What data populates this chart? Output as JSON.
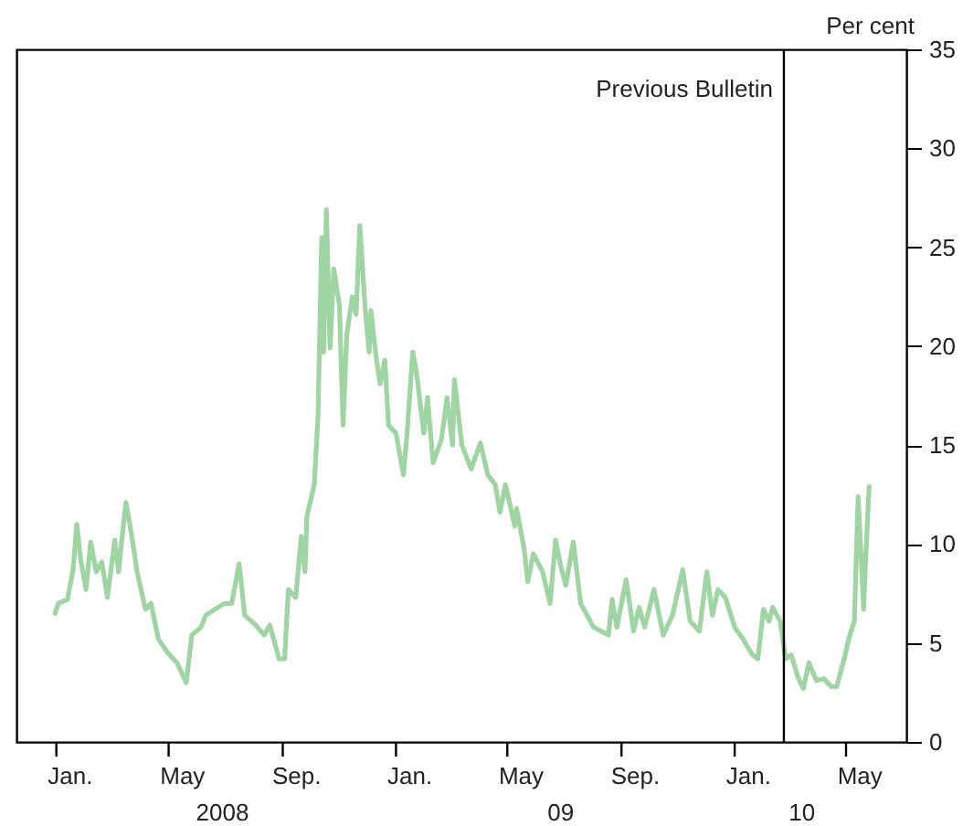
{
  "chart_data": {
    "type": "line",
    "ylabel": "Per cent",
    "x": [
      "2007-12-30",
      "2008-01-03",
      "2008-01-13",
      "2008-01-19",
      "2008-01-23",
      "2008-01-27",
      "2008-02-02",
      "2008-02-07",
      "2008-02-13",
      "2008-02-19",
      "2008-02-25",
      "2008-03-04",
      "2008-03-08",
      "2008-03-12",
      "2008-03-16",
      "2008-03-22",
      "2008-03-28",
      "2008-04-06",
      "2008-04-12",
      "2008-04-20",
      "2008-04-30",
      "2008-05-10",
      "2008-05-20",
      "2008-05-26",
      "2008-06-05",
      "2008-06-10",
      "2008-06-20",
      "2008-06-30",
      "2008-07-08",
      "2008-07-16",
      "2008-07-22",
      "2008-08-03",
      "2008-08-12",
      "2008-08-18",
      "2008-08-28",
      "2008-09-03",
      "2008-09-07",
      "2008-09-15",
      "2008-09-21",
      "2008-09-25",
      "2008-09-27",
      "2008-10-05",
      "2008-10-09",
      "2008-10-13",
      "2008-10-15",
      "2008-10-18",
      "2008-10-22",
      "2008-10-26",
      "2008-11-01",
      "2008-11-05",
      "2008-11-09",
      "2008-11-15",
      "2008-11-19",
      "2008-11-23",
      "2008-11-29",
      "2008-12-03",
      "2008-12-05",
      "2008-12-11",
      "2008-12-15",
      "2008-12-20",
      "2008-12-24",
      "2009-01-01",
      "2009-01-09",
      "2009-01-13",
      "2009-01-19",
      "2009-01-23",
      "2009-01-31",
      "2009-02-04",
      "2009-02-10",
      "2009-02-19",
      "2009-02-25",
      "2009-03-03",
      "2009-03-05",
      "2009-03-13",
      "2009-03-23",
      "2009-04-02",
      "2009-04-10",
      "2009-04-18",
      "2009-04-23",
      "2009-04-29",
      "2009-05-09",
      "2009-05-11",
      "2009-05-19",
      "2009-05-23",
      "2009-05-29",
      "2009-06-08",
      "2009-06-16",
      "2009-06-22",
      "2009-06-27",
      "2009-07-03",
      "2009-07-11",
      "2009-07-19",
      "2009-08-02",
      "2009-08-18",
      "2009-08-22",
      "2009-08-27",
      "2009-09-06",
      "2009-09-14",
      "2009-09-20",
      "2009-09-26",
      "2009-10-06",
      "2009-10-16",
      "2009-10-26",
      "2009-11-06",
      "2009-11-14",
      "2009-11-24",
      "2009-12-02",
      "2009-12-08",
      "2009-12-14",
      "2009-12-22",
      "2010-01-01",
      "2010-01-10",
      "2010-01-20",
      "2010-01-26",
      "2010-02-01",
      "2010-02-07",
      "2010-02-11",
      "2010-02-19",
      "2010-02-25",
      "2010-03-03",
      "2010-03-10",
      "2010-03-16",
      "2010-03-22",
      "2010-03-30",
      "2010-04-07",
      "2010-04-15",
      "2010-04-21",
      "2010-04-29",
      "2010-05-05",
      "2010-05-10",
      "2010-05-14",
      "2010-05-20",
      "2010-05-22",
      "2010-05-26"
    ],
    "series": [
      {
        "color": "#9fd4a3",
        "values": [
          6.4,
          7.0,
          7.2,
          8.7,
          11.0,
          9.3,
          7.7,
          10.1,
          8.6,
          9.1,
          7.3,
          10.2,
          8.6,
          10.4,
          12.1,
          10.5,
          8.6,
          6.7,
          7.0,
          5.2,
          4.5,
          4.0,
          3.0,
          5.4,
          5.8,
          6.4,
          6.7,
          7.0,
          7.0,
          9.0,
          6.4,
          5.9,
          5.4,
          5.9,
          4.2,
          4.2,
          7.7,
          7.3,
          10.4,
          8.6,
          11.4,
          13.0,
          16.5,
          25.5,
          19.7,
          26.9,
          19.9,
          23.9,
          22.1,
          16.0,
          20.6,
          22.5,
          21.6,
          26.1,
          21.8,
          19.7,
          21.8,
          19.3,
          18.1,
          19.3,
          16.0,
          15.6,
          13.5,
          15.6,
          19.7,
          18.7,
          15.6,
          17.4,
          14.1,
          15.3,
          17.4,
          15.0,
          18.3,
          15.0,
          13.8,
          15.1,
          13.5,
          13.0,
          11.6,
          13.0,
          10.9,
          11.8,
          9.8,
          8.1,
          9.5,
          8.6,
          7.0,
          10.2,
          9.0,
          7.9,
          10.1,
          7.0,
          5.8,
          5.4,
          7.2,
          5.8,
          8.2,
          5.6,
          6.8,
          5.8,
          7.7,
          5.4,
          6.4,
          8.7,
          6.1,
          5.6,
          8.6,
          6.4,
          7.7,
          7.3,
          5.8,
          5.2,
          4.4,
          4.2,
          6.7,
          6.1,
          6.8,
          6.1,
          4.2,
          4.4,
          3.3,
          2.7,
          4.0,
          3.1,
          3.2,
          2.8,
          2.8,
          4.2,
          5.4,
          6.1,
          12.4,
          6.7,
          9.1,
          13.0
        ]
      }
    ],
    "xlim": [
      "2007-11-19",
      "2010-07-05"
    ],
    "xticks": [
      {
        "value": "2008-01-01",
        "label": null
      },
      {
        "value": "2008-05-01",
        "label": null
      },
      {
        "value": "2008-09-01",
        "label": null
      },
      {
        "value": "2009-01-01",
        "label": null
      },
      {
        "value": "2009-05-01",
        "label": null
      },
      {
        "value": "2009-09-01",
        "label": null
      },
      {
        "value": "2010-01-01",
        "label": null
      },
      {
        "value": "2010-05-01",
        "label": null
      },
      {
        "value": "2008-01-16",
        "label": "Jan."
      },
      {
        "value": "2008-05-16",
        "label": "May"
      },
      {
        "value": "2008-09-16",
        "label": "Sep."
      },
      {
        "value": "2009-01-16",
        "label": "Jan."
      },
      {
        "value": "2009-05-16",
        "label": "May"
      },
      {
        "value": "2009-09-16",
        "label": "Sep."
      },
      {
        "value": "2010-01-16",
        "label": "Jan."
      },
      {
        "value": "2010-05-16",
        "label": "May"
      }
    ],
    "annotations": [
      "2008",
      "09",
      "10"
    ],
    "ylim": [
      0,
      35
    ],
    "yticks": [
      0,
      5,
      10,
      15,
      20,
      25,
      30,
      35
    ],
    "ref_lines": [
      {
        "axis": "x",
        "value": "2010-02-23",
        "label": "Previous Bulletin",
        "color": "#000000"
      }
    ],
    "grid": false,
    "legend": false
  }
}
